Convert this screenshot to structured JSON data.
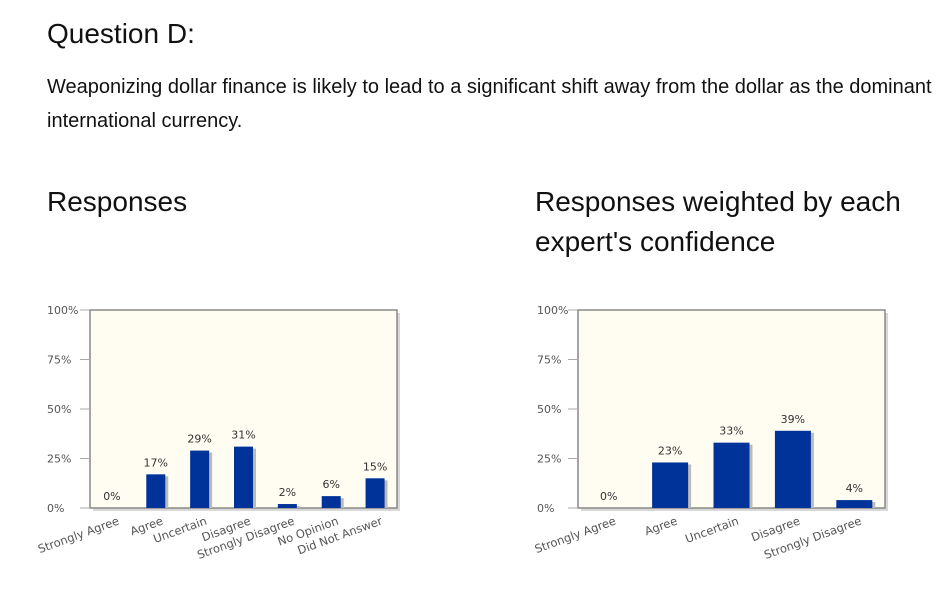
{
  "question": {
    "title": "Question D:",
    "text": "Weaponizing dollar finance is likely to lead to a significant shift away from the dollar as the dominant international currency."
  },
  "colors": {
    "bar": "#003399",
    "plot_bg": "#fffdf2",
    "plot_border": "#888888"
  },
  "chart_data": [
    {
      "type": "bar",
      "title": "Responses",
      "categories": [
        "Strongly Agree",
        "Agree",
        "Uncertain",
        "Disagree",
        "Strongly Disagree",
        "No Opinion",
        "Did Not Answer"
      ],
      "values": [
        0,
        17,
        29,
        31,
        2,
        6,
        15
      ],
      "value_labels": [
        "0%",
        "17%",
        "29%",
        "31%",
        "2%",
        "6%",
        "15%"
      ],
      "y_ticks": [
        "0%",
        "25%",
        "50%",
        "75%",
        "100%"
      ],
      "ylim": [
        0,
        100
      ],
      "grid": false
    },
    {
      "type": "bar",
      "title": "Responses weighted by each expert's confidence",
      "categories": [
        "Strongly Agree",
        "Agree",
        "Uncertain",
        "Disagree",
        "Strongly Disagree"
      ],
      "values": [
        0,
        23,
        33,
        39,
        4
      ],
      "value_labels": [
        "0%",
        "23%",
        "33%",
        "39%",
        "4%"
      ],
      "y_ticks": [
        "0%",
        "25%",
        "50%",
        "75%",
        "100%"
      ],
      "ylim": [
        0,
        100
      ],
      "grid": false
    }
  ]
}
